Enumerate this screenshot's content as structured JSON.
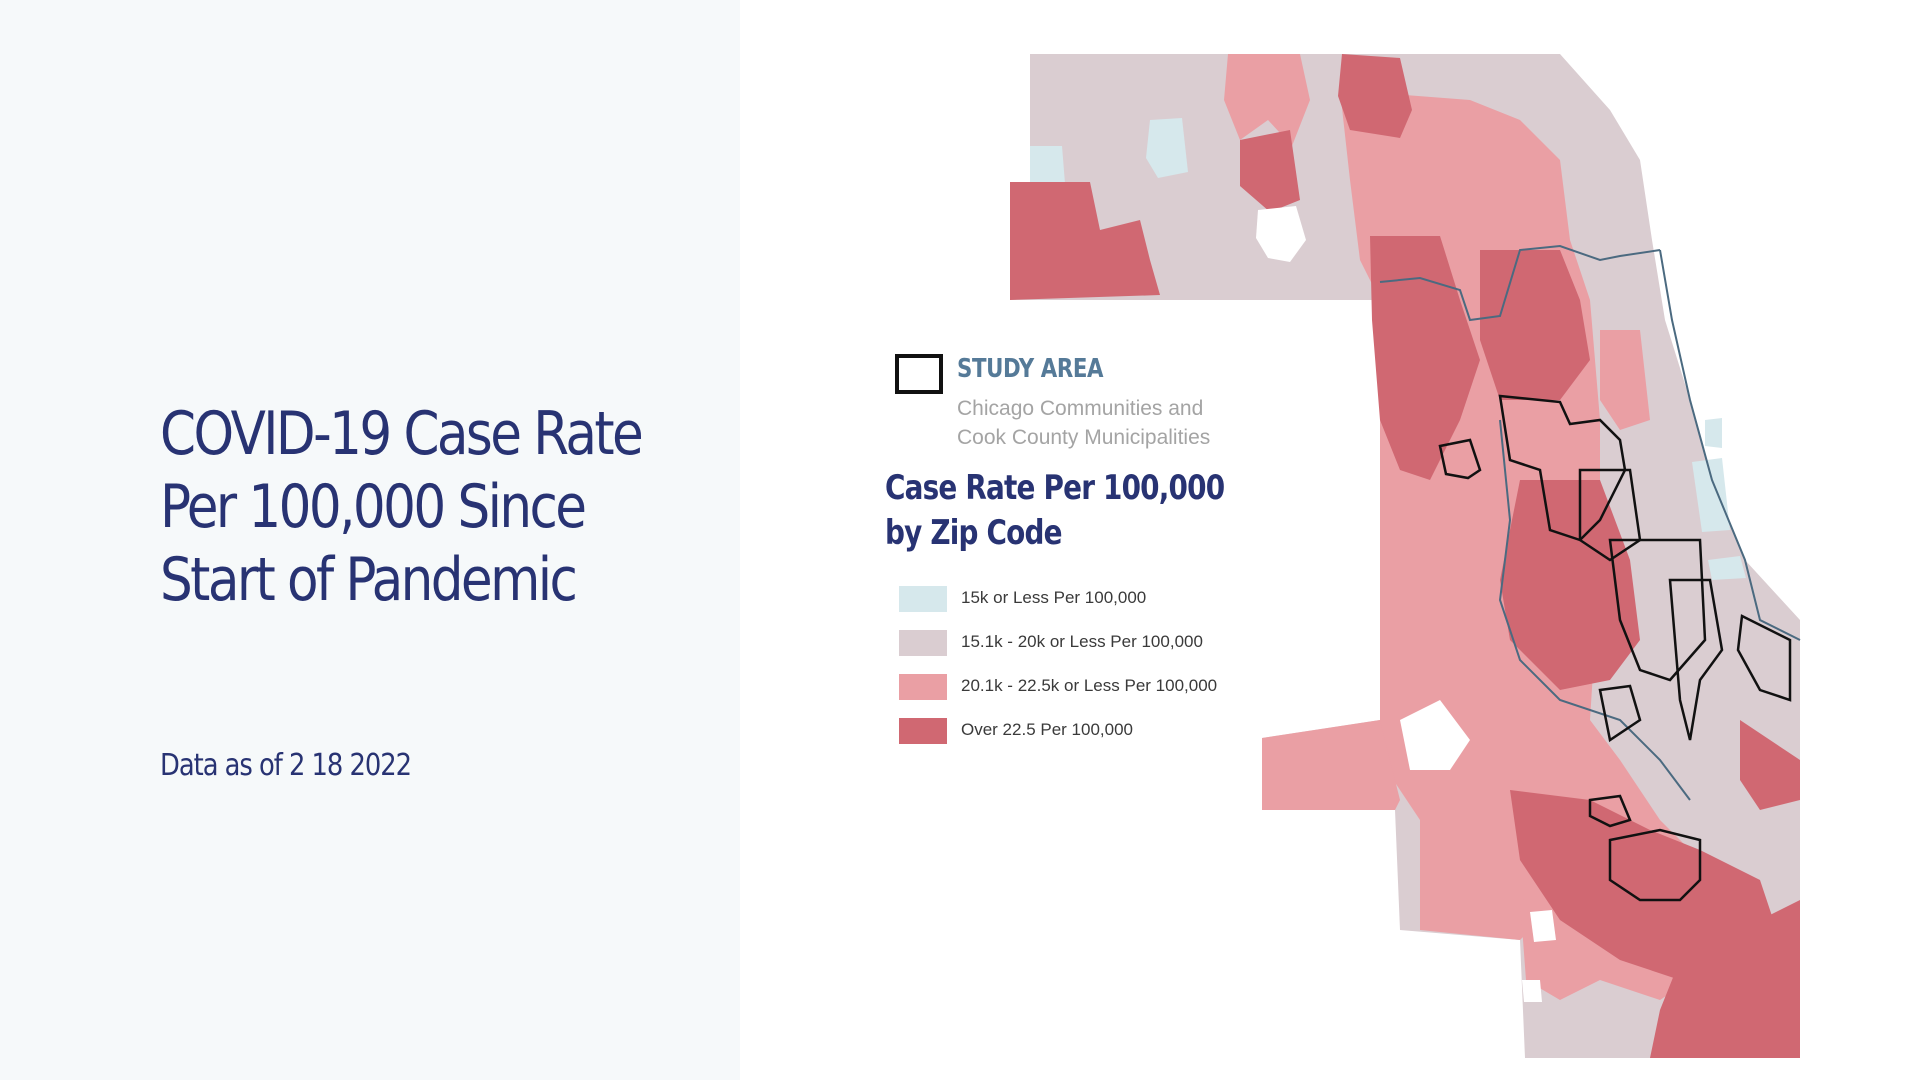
{
  "slide": {
    "title": "COVID-19 Case Rate Per 100,000 Since Start of Pandemic",
    "subtitle": "Data as of 2 18 2022"
  },
  "legend": {
    "study_area_title": "STUDY AREA",
    "study_area_line1": "Chicago Communities and",
    "study_area_line2": "Cook County Municipalities",
    "rate_title": "Case Rate Per 100,000 by Zip Code",
    "items": [
      {
        "label": "15k or Less Per 100,000",
        "color": "#d6e8ec"
      },
      {
        "label": "15.1k - 20k or Less Per 100,000",
        "color": "#dacdd1"
      },
      {
        "label": "20.1k - 22.5k or Less Per 100,000",
        "color": "#ea9fa4"
      },
      {
        "label": "Over 22.5 Per 100,000",
        "color": "#d06872"
      }
    ]
  },
  "colors": {
    "title": "#283373",
    "study_title": "#557a98",
    "study_outline": "#111111",
    "lake_border": "#4b6a80"
  }
}
